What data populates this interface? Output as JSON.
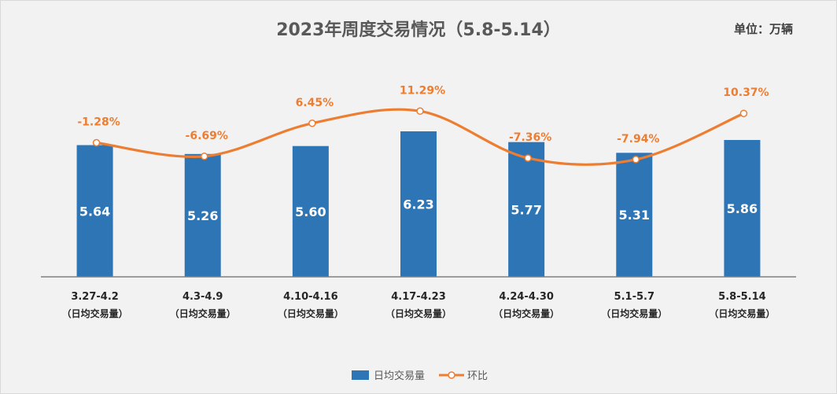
{
  "chart_data": {
    "type": "bar+line",
    "title": "2023年周度交易情况（5.8-5.14）",
    "unit_label": "单位：万辆",
    "categories": [
      "3.27-4.2",
      "4.3-4.9",
      "4.10-4.16",
      "4.17-4.23",
      "4.24-4.30",
      "5.1-5.7",
      "5.8-5.14"
    ],
    "category_sublabel": "（日均交易量）",
    "series": [
      {
        "name": "日均交易量",
        "type": "bar",
        "color": "#2e75b6",
        "values": [
          5.64,
          5.26,
          5.6,
          6.23,
          5.77,
          5.31,
          5.86
        ],
        "labels": [
          "5.64",
          "5.26",
          "5.60",
          "6.23",
          "5.77",
          "5.31",
          "5.86"
        ]
      },
      {
        "name": "环比",
        "type": "line",
        "color": "#ed7d31",
        "values": [
          -1.28,
          -6.69,
          6.45,
          11.29,
          -7.36,
          -7.94,
          10.37
        ],
        "labels": [
          "-1.28%",
          "-6.69%",
          "6.45%",
          "11.29%",
          "-7.36%",
          "-7.94%",
          "10.37%"
        ]
      }
    ],
    "legend": [
      "日均交易量",
      "环比"
    ],
    "legend_position": "bottom"
  }
}
